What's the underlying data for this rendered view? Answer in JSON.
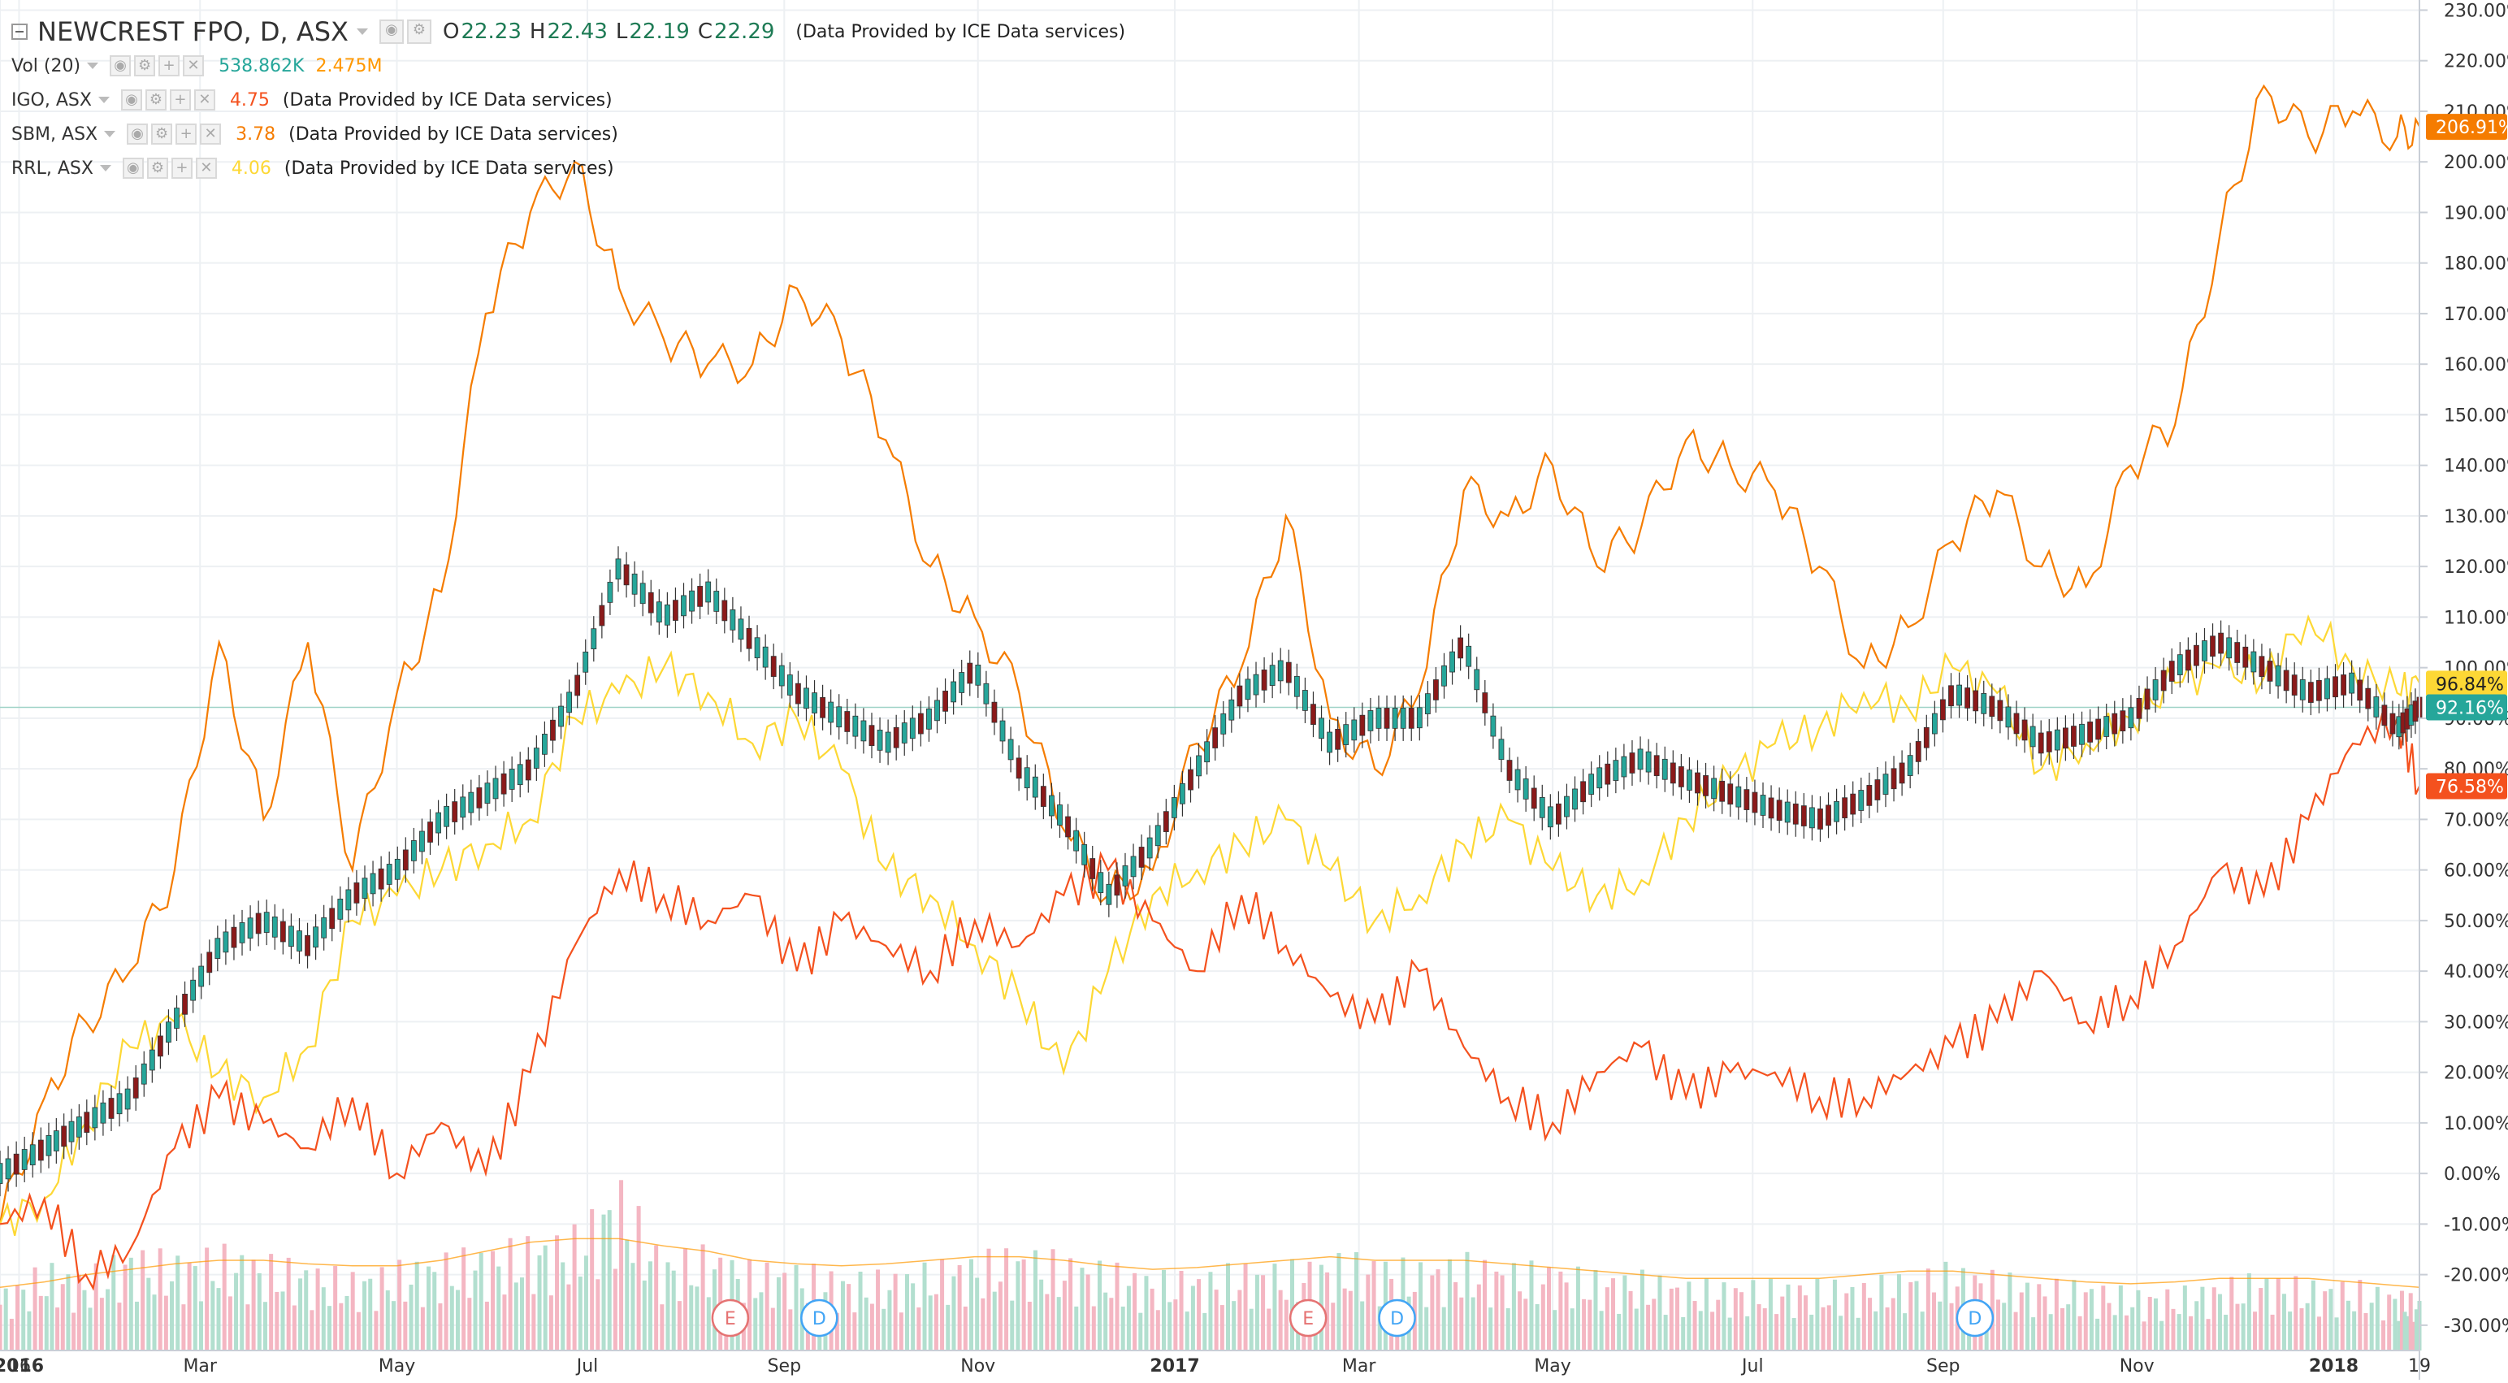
{
  "legend": {
    "main": {
      "title": "NEWCREST FPO, D, ASX",
      "o_label": "O",
      "o": "22.23",
      "h_label": "H",
      "h": "22.43",
      "l_label": "L",
      "l": "22.19",
      "c_label": "C",
      "c": "22.29",
      "provider": "(Data Provided by ICE Data services)"
    },
    "volume": {
      "label": "Vol (20)",
      "value": "538.862K",
      "ma_value": "2.475M",
      "value_color": "#26a69a",
      "ma_color": "#ff9800"
    },
    "compare": [
      {
        "label": "IGO, ASX",
        "value": "4.75",
        "provider": "(Data Provided by ICE Data services)",
        "color": "#f4511e"
      },
      {
        "label": "SBM, ASX",
        "value": "3.78",
        "provider": "(Data Provided by ICE Data services)",
        "color": "#f57c00"
      },
      {
        "label": "RRL, ASX",
        "value": "4.06",
        "provider": "(Data Provided by ICE Data services)",
        "color": "#fdd835"
      }
    ]
  },
  "colors": {
    "ncm_up": "#26a69a",
    "ncm_down": "#8b1a1a",
    "vol_up": "#b2dfcf",
    "vol_down": "#f4b6c2",
    "grid": "#edf0f3"
  },
  "events": [
    {
      "letter": "E",
      "type": "earnings",
      "date": "2016-08-15",
      "color": "#e57373"
    },
    {
      "letter": "D",
      "type": "dividend",
      "date": "2016-09-12",
      "color": "#42a5f5"
    },
    {
      "letter": "E",
      "type": "earnings",
      "date": "2017-02-13",
      "color": "#e57373"
    },
    {
      "letter": "D",
      "type": "dividend",
      "date": "2017-03-13",
      "color": "#42a5f5"
    },
    {
      "letter": "D",
      "type": "dividend",
      "date": "2017-09-11",
      "color": "#42a5f5"
    }
  ],
  "chart_data": {
    "type": "line",
    "x_axis": {
      "type": "date",
      "range": [
        "2015-12-29",
        "2018-01-29"
      ],
      "tick_labels": [
        "16",
        "2016",
        "Mar",
        "May",
        "Jul",
        "Sep",
        "Nov",
        "2017",
        "Mar",
        "May",
        "Jul",
        "Sep",
        "Nov",
        "2018",
        "19"
      ],
      "tick_dates": [
        "2015-12-29",
        "2016-01-04",
        "2016-03-01",
        "2016-05-02",
        "2016-07-01",
        "2016-09-01",
        "2016-11-01",
        "2017-01-02",
        "2017-03-01",
        "2017-05-01",
        "2017-07-03",
        "2017-09-01",
        "2017-11-01",
        "2018-01-02",
        "2018-01-29"
      ]
    },
    "y_axis": {
      "unit": "%",
      "range": [
        -35,
        232
      ],
      "tick_labels": [
        "230.00%",
        "220.00%",
        "210.00%",
        "200.00%",
        "190.00%",
        "180.00%",
        "170.00%",
        "160.00%",
        "150.00%",
        "140.00%",
        "130.00%",
        "120.00%",
        "110.00%",
        "100.00%",
        "90.00%",
        "80.00%",
        "70.00%",
        "60.00%",
        "50.00%",
        "40.00%",
        "30.00%",
        "20.00%",
        "10.00%",
        "0.00%",
        "-10.00%",
        "-20.00%",
        "-30.00%"
      ],
      "tick_values": [
        230,
        220,
        210,
        200,
        190,
        180,
        170,
        160,
        150,
        140,
        130,
        120,
        110,
        100,
        90,
        80,
        70,
        60,
        50,
        40,
        30,
        20,
        10,
        0,
        -10,
        -20,
        -30
      ]
    },
    "grid": true,
    "last_value_labels": [
      {
        "text": "206.91%",
        "value": 206.91,
        "color": "#f57c00"
      },
      {
        "text": "96.84%",
        "value": 96.84,
        "color": "#fdd835"
      },
      {
        "text": "92.16%",
        "value": 92.16,
        "color": "#26a69a"
      },
      {
        "text": "76.58%",
        "value": 76.58,
        "color": "#f4511e"
      }
    ],
    "series": [
      {
        "name": "SBM, ASX",
        "color": "#f57c00",
        "x": [
          "2015-12-29",
          "2016-01-12",
          "2016-01-25",
          "2016-02-08",
          "2016-02-22",
          "2016-03-07",
          "2016-03-21",
          "2016-04-04",
          "2016-04-18",
          "2016-05-02",
          "2016-05-16",
          "2016-05-30",
          "2016-06-13",
          "2016-06-27",
          "2016-07-11",
          "2016-07-25",
          "2016-08-08",
          "2016-08-22",
          "2016-09-05",
          "2016-09-19",
          "2016-10-03",
          "2016-10-17",
          "2016-10-31",
          "2016-11-14",
          "2016-11-28",
          "2016-12-12",
          "2016-12-26",
          "2017-01-09",
          "2017-01-23",
          "2017-02-06",
          "2017-02-20",
          "2017-03-06",
          "2017-03-20",
          "2017-04-03",
          "2017-04-17",
          "2017-05-01",
          "2017-05-15",
          "2017-05-29",
          "2017-06-12",
          "2017-06-26",
          "2017-07-10",
          "2017-07-24",
          "2017-08-07",
          "2017-08-21",
          "2017-09-04",
          "2017-09-18",
          "2017-10-02",
          "2017-10-16",
          "2017-10-30",
          "2017-11-13",
          "2017-11-27",
          "2017-12-11",
          "2017-12-25",
          "2018-01-08",
          "2018-01-22",
          "2018-01-29"
        ],
        "y": [
          -10,
          15,
          30,
          40,
          60,
          105,
          70,
          105,
          60,
          95,
          115,
          170,
          190,
          200,
          175,
          165,
          160,
          160,
          175,
          165,
          145,
          120,
          110,
          95,
          68,
          55,
          60,
          85,
          100,
          130,
          90,
          80,
          95,
          135,
          130,
          140,
          120,
          128,
          145,
          140,
          135,
          120,
          100,
          108,
          125,
          135,
          120,
          116,
          140,
          148,
          185,
          215,
          205,
          210,
          205,
          207
        ]
      },
      {
        "name": "RRL, ASX",
        "color": "#fdd835",
        "x": [
          "2015-12-29",
          "2016-01-12",
          "2016-01-25",
          "2016-02-08",
          "2016-02-22",
          "2016-03-07",
          "2016-03-21",
          "2016-04-04",
          "2016-04-18",
          "2016-05-02",
          "2016-05-16",
          "2016-05-30",
          "2016-06-13",
          "2016-06-27",
          "2016-07-11",
          "2016-07-25",
          "2016-08-08",
          "2016-08-22",
          "2016-09-05",
          "2016-09-19",
          "2016-10-03",
          "2016-10-17",
          "2016-10-31",
          "2016-11-14",
          "2016-11-28",
          "2016-12-12",
          "2016-12-26",
          "2017-01-09",
          "2017-01-23",
          "2017-02-06",
          "2017-02-20",
          "2017-03-06",
          "2017-03-20",
          "2017-04-03",
          "2017-04-17",
          "2017-05-01",
          "2017-05-15",
          "2017-05-29",
          "2017-06-12",
          "2017-06-26",
          "2017-07-10",
          "2017-07-24",
          "2017-08-07",
          "2017-08-21",
          "2017-09-04",
          "2017-09-18",
          "2017-10-02",
          "2017-10-16",
          "2017-10-30",
          "2017-11-13",
          "2017-11-27",
          "2017-12-11",
          "2017-12-25",
          "2018-01-08",
          "2018-01-22",
          "2018-01-29"
        ],
        "y": [
          -10,
          -5,
          10,
          25,
          30,
          20,
          15,
          25,
          50,
          55,
          60,
          65,
          70,
          90,
          95,
          100,
          95,
          85,
          90,
          80,
          60,
          55,
          45,
          35,
          20,
          40,
          55,
          60,
          65,
          70,
          60,
          50,
          55,
          65,
          70,
          60,
          55,
          58,
          70,
          78,
          85,
          88,
          95,
          92,
          100,
          95,
          80,
          85,
          90,
          97,
          100,
          98,
          110,
          100,
          95,
          97
        ]
      },
      {
        "name": "IGO, ASX",
        "color": "#f4511e",
        "x": [
          "2015-12-29",
          "2016-01-12",
          "2016-01-25",
          "2016-02-08",
          "2016-02-22",
          "2016-03-07",
          "2016-03-21",
          "2016-04-04",
          "2016-04-18",
          "2016-05-02",
          "2016-05-16",
          "2016-05-30",
          "2016-06-13",
          "2016-06-27",
          "2016-07-11",
          "2016-07-25",
          "2016-08-08",
          "2016-08-22",
          "2016-09-05",
          "2016-09-19",
          "2016-10-03",
          "2016-10-17",
          "2016-10-31",
          "2016-11-14",
          "2016-11-28",
          "2016-12-12",
          "2016-12-26",
          "2017-01-09",
          "2017-01-23",
          "2017-02-06",
          "2017-02-20",
          "2017-03-06",
          "2017-03-20",
          "2017-04-03",
          "2017-04-17",
          "2017-05-01",
          "2017-05-15",
          "2017-05-29",
          "2017-06-12",
          "2017-06-26",
          "2017-07-10",
          "2017-07-24",
          "2017-08-07",
          "2017-08-21",
          "2017-09-04",
          "2017-09-18",
          "2017-10-02",
          "2017-10-16",
          "2017-10-30",
          "2017-11-13",
          "2017-11-27",
          "2017-12-11",
          "2017-12-25",
          "2018-01-08",
          "2018-01-22",
          "2018-01-29"
        ],
        "y": [
          -10,
          -5,
          -20,
          -15,
          5,
          15,
          10,
          5,
          15,
          0,
          10,
          0,
          20,
          45,
          60,
          55,
          50,
          55,
          40,
          50,
          45,
          40,
          50,
          45,
          55,
          60,
          50,
          40,
          55,
          45,
          35,
          30,
          40,
          25,
          15,
          10,
          20,
          25,
          15,
          20,
          20,
          15,
          15,
          20,
          25,
          30,
          40,
          30,
          35,
          45,
          60,
          55,
          70,
          85,
          90,
          76.58
        ]
      },
      {
        "name": "NEWCREST FPO, D, ASX",
        "color": "#26a69a",
        "x": [
          "2015-12-29",
          "2016-01-12",
          "2016-01-25",
          "2016-02-08",
          "2016-02-22",
          "2016-03-07",
          "2016-03-21",
          "2016-04-04",
          "2016-04-18",
          "2016-05-02",
          "2016-05-16",
          "2016-05-30",
          "2016-06-13",
          "2016-06-27",
          "2016-07-11",
          "2016-07-25",
          "2016-08-08",
          "2016-08-22",
          "2016-09-05",
          "2016-09-19",
          "2016-10-03",
          "2016-10-17",
          "2016-10-31",
          "2016-11-14",
          "2016-11-28",
          "2016-12-12",
          "2016-12-26",
          "2017-01-09",
          "2017-01-23",
          "2017-02-06",
          "2017-02-20",
          "2017-03-06",
          "2017-03-20",
          "2017-04-03",
          "2017-04-17",
          "2017-05-01",
          "2017-05-15",
          "2017-05-29",
          "2017-06-12",
          "2017-06-26",
          "2017-07-10",
          "2017-07-24",
          "2017-08-07",
          "2017-08-21",
          "2017-09-04",
          "2017-09-18",
          "2017-10-02",
          "2017-10-16",
          "2017-10-30",
          "2017-11-13",
          "2017-11-27",
          "2017-12-11",
          "2017-12-25",
          "2018-01-08",
          "2018-01-22",
          "2018-01-29"
        ],
        "y": [
          0,
          5,
          10,
          15,
          30,
          45,
          50,
          45,
          55,
          60,
          70,
          75,
          80,
          95,
          120,
          110,
          115,
          105,
          95,
          90,
          85,
          90,
          100,
          80,
          70,
          55,
          65,
          80,
          95,
          100,
          85,
          90,
          90,
          105,
          80,
          70,
          78,
          82,
          78,
          75,
          72,
          70,
          74,
          80,
          95,
          92,
          85,
          87,
          90,
          100,
          105,
          100,
          95,
          97,
          88,
          92.16
        ]
      }
    ],
    "volume": {
      "name": "Vol (20)",
      "x": [
        "2015-12-29",
        "2016-01-12",
        "2016-01-25",
        "2016-02-08",
        "2016-02-22",
        "2016-03-07",
        "2016-03-21",
        "2016-04-04",
        "2016-04-18",
        "2016-05-02",
        "2016-05-16",
        "2016-05-30",
        "2016-06-13",
        "2016-06-27",
        "2016-07-11",
        "2016-07-25",
        "2016-08-08",
        "2016-08-22",
        "2016-09-05",
        "2016-09-19",
        "2016-10-03",
        "2016-10-17",
        "2016-10-31",
        "2016-11-14",
        "2016-11-28",
        "2016-12-12",
        "2016-12-26",
        "2017-01-09",
        "2017-01-23",
        "2017-02-06",
        "2017-02-20",
        "2017-03-06",
        "2017-03-20",
        "2017-04-03",
        "2017-04-17",
        "2017-05-01",
        "2017-05-15",
        "2017-05-29",
        "2017-06-12",
        "2017-06-26",
        "2017-07-10",
        "2017-07-24",
        "2017-08-07",
        "2017-08-21",
        "2017-09-04",
        "2017-09-18",
        "2017-10-02",
        "2017-10-16",
        "2017-10-30",
        "2017-11-13",
        "2017-11-27",
        "2017-12-11",
        "2017-12-25",
        "2018-01-08",
        "2018-01-22",
        "2018-01-29"
      ],
      "rel_height": [
        0.35,
        0.5,
        0.45,
        0.6,
        0.55,
        0.6,
        0.55,
        0.5,
        0.45,
        0.5,
        0.55,
        0.6,
        0.65,
        0.7,
        1.0,
        0.55,
        0.6,
        0.5,
        0.5,
        0.45,
        0.45,
        0.5,
        0.55,
        0.6,
        0.55,
        0.5,
        0.45,
        0.45,
        0.5,
        0.5,
        0.55,
        0.55,
        0.5,
        0.55,
        0.5,
        0.5,
        0.45,
        0.45,
        0.4,
        0.4,
        0.4,
        0.4,
        0.4,
        0.45,
        0.5,
        0.45,
        0.4,
        0.4,
        0.35,
        0.35,
        0.4,
        0.45,
        0.4,
        0.4,
        0.35,
        0.3
      ],
      "ma_rel": [
        0.35,
        0.38,
        0.42,
        0.45,
        0.48,
        0.5,
        0.5,
        0.48,
        0.47,
        0.47,
        0.5,
        0.55,
        0.6,
        0.62,
        0.62,
        0.58,
        0.55,
        0.5,
        0.48,
        0.47,
        0.48,
        0.5,
        0.52,
        0.52,
        0.5,
        0.47,
        0.45,
        0.46,
        0.48,
        0.5,
        0.52,
        0.5,
        0.5,
        0.5,
        0.48,
        0.46,
        0.44,
        0.42,
        0.4,
        0.4,
        0.4,
        0.4,
        0.42,
        0.44,
        0.44,
        0.42,
        0.4,
        0.38,
        0.37,
        0.38,
        0.4,
        0.4,
        0.4,
        0.38,
        0.36,
        0.35
      ]
    }
  }
}
